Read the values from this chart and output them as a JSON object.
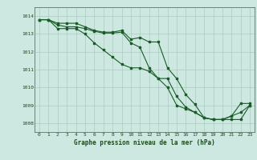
{
  "title": "Graphe pression niveau de la mer (hPa)",
  "background_color": "#cce8e0",
  "grid_color": "#aaccc0",
  "line_color": "#1a5c28",
  "xlim": [
    -0.5,
    23.5
  ],
  "ylim": [
    1007.5,
    1014.5
  ],
  "yticks": [
    1008,
    1009,
    1010,
    1011,
    1012,
    1013,
    1014
  ],
  "xticks": [
    0,
    1,
    2,
    3,
    4,
    5,
    6,
    7,
    8,
    9,
    10,
    11,
    12,
    13,
    14,
    15,
    16,
    17,
    18,
    19,
    20,
    21,
    22,
    23
  ],
  "series1": {
    "x": [
      0,
      1,
      2,
      3,
      4,
      5,
      6,
      7,
      8,
      9,
      10,
      11,
      12,
      13,
      14,
      15,
      16,
      17,
      18,
      19,
      20,
      21,
      22,
      23
    ],
    "y": [
      1013.8,
      1013.8,
      1013.6,
      1013.6,
      1013.6,
      1013.4,
      1013.2,
      1013.1,
      1013.1,
      1013.2,
      1012.7,
      1012.8,
      1012.55,
      1012.55,
      1011.1,
      1010.5,
      1009.6,
      1009.05,
      1008.3,
      1008.2,
      1008.2,
      1008.4,
      1009.1,
      1009.1
    ]
  },
  "series2": {
    "x": [
      0,
      1,
      2,
      3,
      4,
      5,
      6,
      7,
      8,
      9,
      10,
      11,
      12,
      13,
      14,
      15,
      16,
      17,
      18,
      19,
      20,
      21,
      22,
      23
    ],
    "y": [
      1013.8,
      1013.8,
      1013.5,
      1013.4,
      1013.4,
      1013.3,
      1013.15,
      1013.05,
      1013.05,
      1013.1,
      1012.5,
      1012.25,
      1011.1,
      1010.5,
      1010.5,
      1009.5,
      1008.9,
      1008.6,
      1008.3,
      1008.2,
      1008.2,
      1008.4,
      1008.6,
      1009.0
    ]
  },
  "series3": {
    "x": [
      0,
      1,
      2,
      3,
      4,
      5,
      6,
      7,
      8,
      9,
      10,
      11,
      12,
      13,
      14,
      15,
      16,
      17,
      18,
      19,
      20,
      21,
      22,
      23
    ],
    "y": [
      1013.8,
      1013.8,
      1013.3,
      1013.3,
      1013.3,
      1013.0,
      1012.5,
      1012.1,
      1011.7,
      1011.3,
      1011.1,
      1011.1,
      1010.9,
      1010.5,
      1010.0,
      1009.0,
      1008.8,
      1008.6,
      1008.3,
      1008.2,
      1008.2,
      1008.2,
      1008.2,
      1009.0
    ]
  }
}
